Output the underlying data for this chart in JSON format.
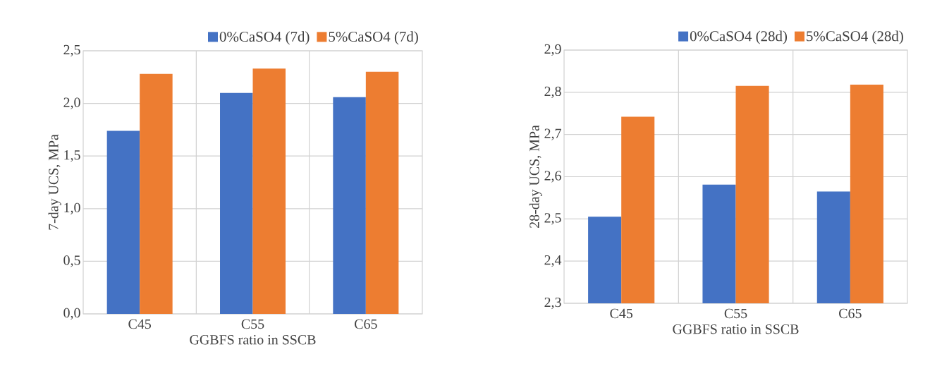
{
  "chart_data": [
    {
      "type": "bar",
      "categories": [
        "C45",
        "C55",
        "C65"
      ],
      "xlabel": "GGBFS ratio in SSCB",
      "ylabel": "7-day UCS, MPa",
      "series": [
        {
          "name": "0%CaSO4 (7d)",
          "color": "#4472c4",
          "values": [
            1.74,
            2.1,
            2.06
          ]
        },
        {
          "name": "5%CaSO4 (7d)",
          "color": "#ed7d31",
          "values": [
            2.28,
            2.33,
            2.3
          ]
        }
      ],
      "ylim": [
        0,
        2.5
      ],
      "yticks": [
        {
          "value": 0,
          "label": "0,0"
        },
        {
          "value": 0.5,
          "label": "0,5"
        },
        {
          "value": 1,
          "label": "1,0"
        },
        {
          "value": 1.5,
          "label": "1,5"
        },
        {
          "value": 2,
          "label": "2,0"
        },
        {
          "value": 2.5,
          "label": "2,5"
        }
      ],
      "grid": true,
      "legend": "top right"
    },
    {
      "type": "bar",
      "categories": [
        "C45",
        "C55",
        "C65"
      ],
      "xlabel": "GGBFS ratio in SSCB",
      "ylabel": "28-day UCS, MPa",
      "series": [
        {
          "name": "0%CaSO4 (28d)",
          "color": "#4472c4",
          "values": [
            2.505,
            2.581,
            2.565
          ]
        },
        {
          "name": "5%CaSO4 (28d)",
          "color": "#ed7d31",
          "values": [
            2.742,
            2.815,
            2.818
          ]
        }
      ],
      "ylim": [
        2.3,
        2.9
      ],
      "yticks": [
        {
          "value": 2.3,
          "label": "2,3"
        },
        {
          "value": 2.4,
          "label": "2,4"
        },
        {
          "value": 2.5,
          "label": "2,5"
        },
        {
          "value": 2.6,
          "label": "2,6"
        },
        {
          "value": 2.7,
          "label": "2,7"
        },
        {
          "value": 2.8,
          "label": "2,8"
        },
        {
          "value": 2.9,
          "label": "2,9"
        }
      ],
      "grid": true,
      "legend": "top right"
    }
  ]
}
